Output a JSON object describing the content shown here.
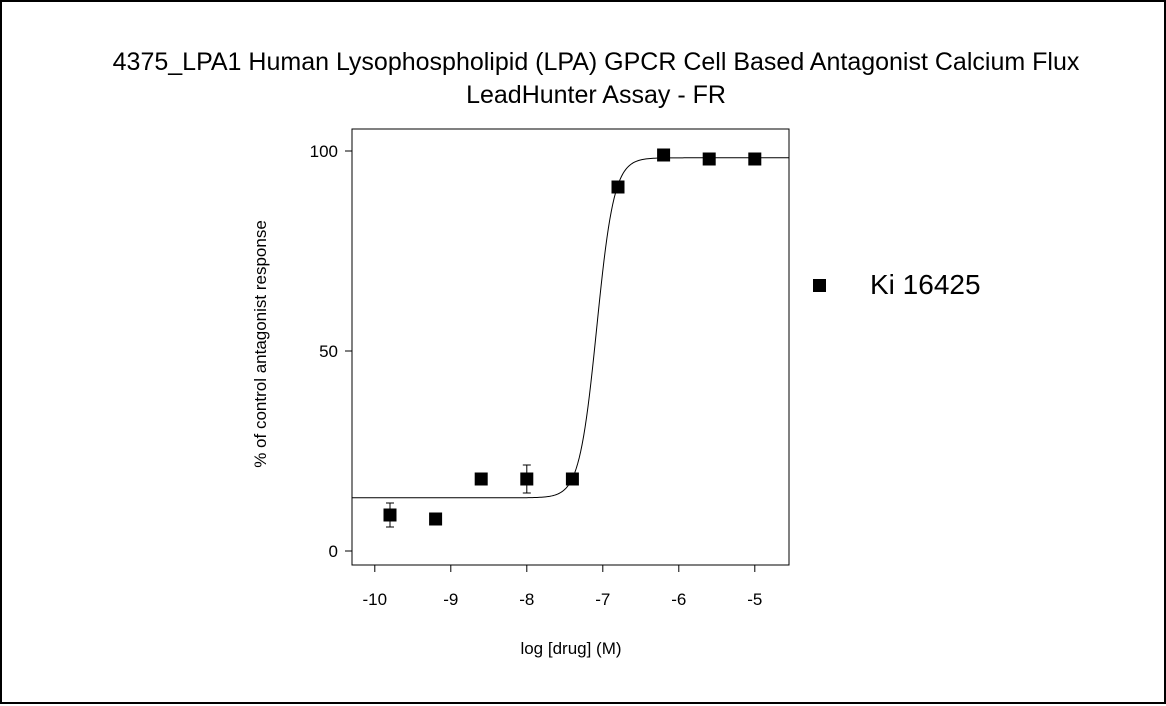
{
  "chart_data": {
    "type": "scatter",
    "title_lines": [
      "4375_LPA1 Human Lysophospholipid (LPA) GPCR Cell Based Antagonist Calcium Flux",
      "LeadHunter Assay - FR"
    ],
    "xlabel": "log [drug] (M)",
    "ylabel": "% of control antagonist response",
    "xlim": [
      -10.3,
      -4.55
    ],
    "ylim": [
      -3.5,
      105.5
    ],
    "x_ticks": [
      -10,
      -9,
      -8,
      -7,
      -6,
      -5
    ],
    "x_tick_labels": [
      "-10",
      "-9",
      "-8",
      "-7",
      "-6",
      "-5"
    ],
    "y_ticks": [
      0,
      50,
      100
    ],
    "y_tick_labels": [
      "0",
      "50",
      "100"
    ],
    "grid": false,
    "legend_position": "right",
    "series": [
      {
        "name": "Ki 16425",
        "marker": "square",
        "color": "#000000",
        "points": [
          {
            "x": -9.8,
            "y": 9,
            "err": 3
          },
          {
            "x": -9.2,
            "y": 8,
            "err": 0
          },
          {
            "x": -8.6,
            "y": 18,
            "err": 0
          },
          {
            "x": -8.0,
            "y": 18,
            "err": 3.5
          },
          {
            "x": -7.4,
            "y": 18,
            "err": 0
          },
          {
            "x": -6.8,
            "y": 91,
            "err": 0
          },
          {
            "x": -6.2,
            "y": 99,
            "err": 0
          },
          {
            "x": -5.6,
            "y": 98,
            "err": 0
          },
          {
            "x": -5.0,
            "y": 98,
            "err": 0
          }
        ],
        "fit": {
          "bottom": 13.3,
          "top": 98.3,
          "log_ic50": -7.08,
          "hill_slope": 3.8
        }
      }
    ]
  }
}
